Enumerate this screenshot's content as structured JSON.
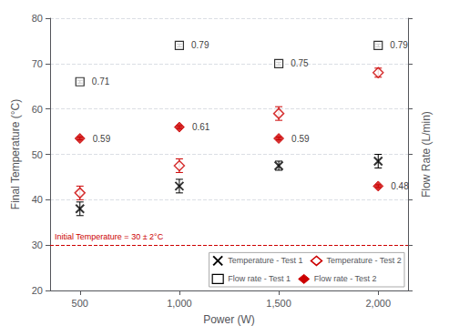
{
  "chart_data": {
    "type": "scatter",
    "xlabel": "Power (W)",
    "ylabel": "Final Temperature (°C)",
    "y2label": "Flow Rate (L/min)",
    "x": [
      500,
      1000,
      1500,
      2000
    ],
    "xlim": [
      350,
      2150
    ],
    "xticks": [
      500,
      1000,
      1500,
      2000
    ],
    "ylim": [
      20,
      80
    ],
    "yticks": [
      20,
      30,
      40,
      50,
      60,
      70,
      80
    ],
    "y2lim": [
      20,
      80
    ],
    "grid": true,
    "legend": "lower right",
    "reference_line": {
      "y": 30,
      "label": "Initial Temperature = 30 ± 2°C",
      "color": "#cc0000"
    },
    "series": [
      {
        "name": "Temperature - Test 1",
        "color": "#000000",
        "marker": "x",
        "values": [
          38.0,
          43.0,
          47.5,
          48.5
        ],
        "yerr": [
          1.5,
          1.5,
          1.0,
          1.5
        ]
      },
      {
        "name": "Temperature - Test 2",
        "color": "#cc0000",
        "marker": "diamond_open",
        "values": [
          41.5,
          47.5,
          59.0,
          68.0
        ],
        "yerr": [
          1.5,
          1.5,
          1.5,
          1.0
        ]
      },
      {
        "name": "Flow rate - Test 1",
        "color": "#000000",
        "marker": "square_open",
        "values": [
          66.0,
          74.0,
          70.0,
          74.0
        ],
        "yerr": [
          0.3,
          0.3,
          0.3,
          0.3
        ],
        "flow_rates": [
          0.71,
          0.79,
          0.75,
          0.79
        ]
      },
      {
        "name": "Flow rate - Test 2",
        "color": "#cc0000",
        "marker": "diamond",
        "values": [
          53.5,
          56.0,
          53.5,
          43.0
        ],
        "yerr": [
          0.3,
          0.3,
          0.3,
          0.3
        ],
        "flow_rates": [
          0.59,
          0.61,
          0.59,
          0.48
        ]
      }
    ]
  }
}
